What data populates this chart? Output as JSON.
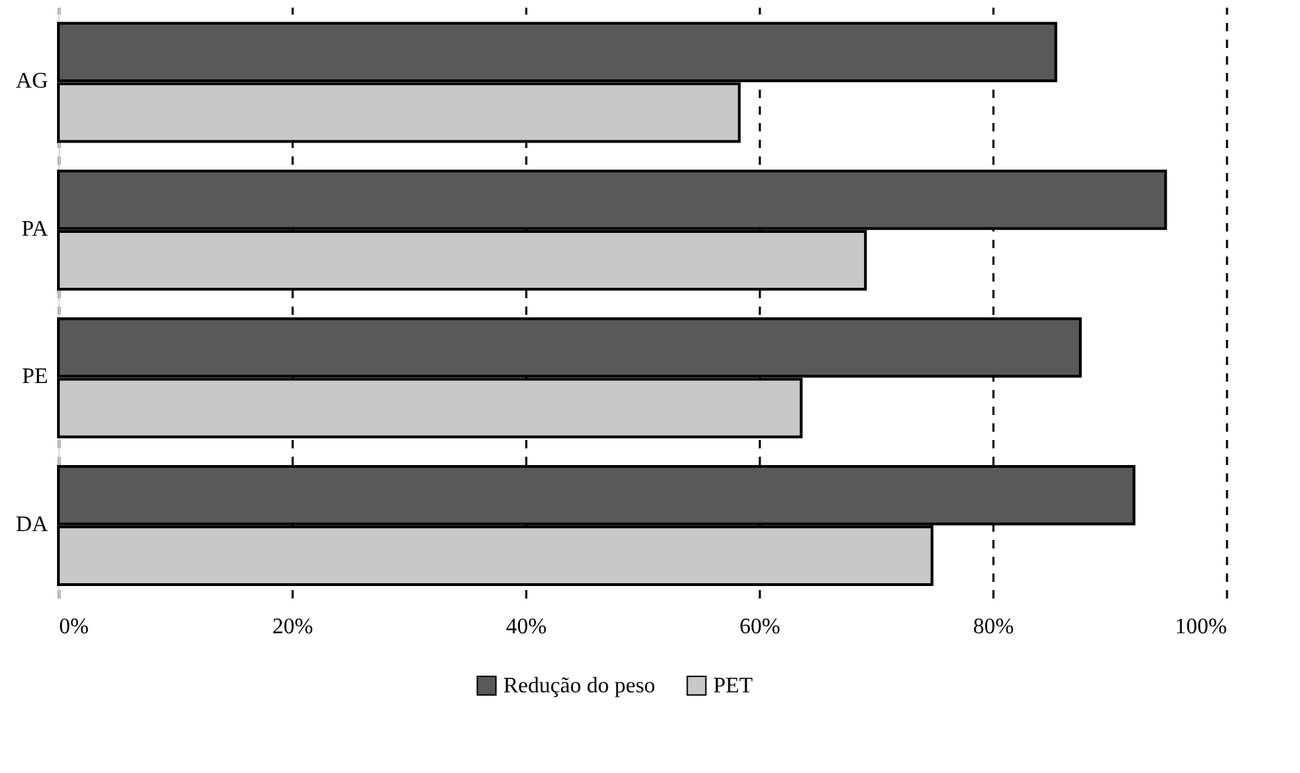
{
  "chart_data": {
    "type": "bar",
    "orientation": "horizontal",
    "categories": [
      "AG",
      "PA",
      "PE",
      "DA"
    ],
    "series": [
      {
        "name": "Redução do peso",
        "color": "#595959",
        "values": [
          85.4,
          94.8,
          87.5,
          92.1
        ]
      },
      {
        "name": "PET",
        "color": "#c8c8c8",
        "values": [
          58.3,
          69.1,
          63.6,
          74.8
        ]
      }
    ],
    "xlim": [
      0,
      100
    ],
    "xticks": [
      {
        "value": 0,
        "label": "0%"
      },
      {
        "value": 20,
        "label": "20%"
      },
      {
        "value": 40,
        "label": "40%"
      },
      {
        "value": 60,
        "label": "60%"
      },
      {
        "value": 80,
        "label": "80%"
      },
      {
        "value": 100,
        "label": "100%"
      }
    ],
    "grid": "x",
    "legend": "bottom"
  }
}
